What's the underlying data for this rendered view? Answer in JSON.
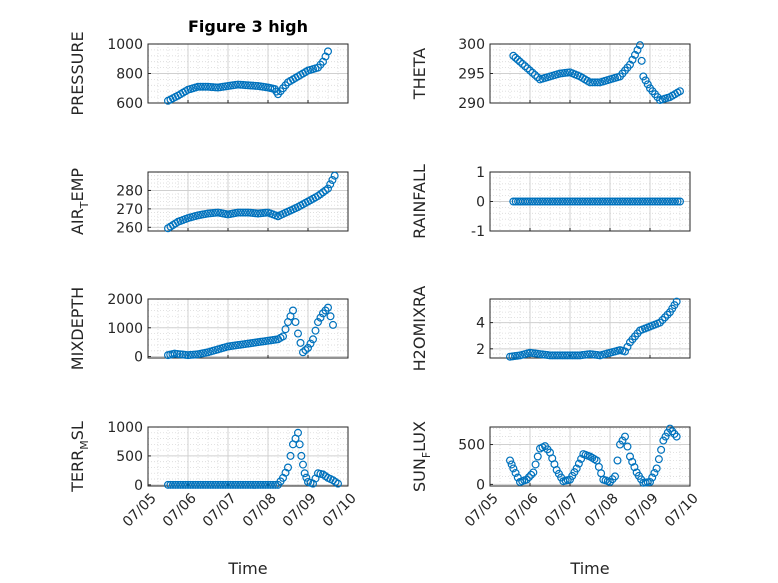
{
  "chart_data": [
    {
      "type": "scatter",
      "title": "Figure 3 high",
      "ylabel": "PRESSURE",
      "xlim": [
        "07/05",
        "07/10"
      ],
      "ylim": [
        600,
        1000
      ],
      "yticks": [
        "600",
        "800",
        "1000"
      ],
      "xticklabels": [],
      "xlabel": "",
      "series": [
        {
          "x": [
            "07/05 12:00",
            "07/05 18:00",
            "07/06 00:00",
            "07/06 06:00",
            "07/06 12:00",
            "07/06 18:00",
            "07/07 00:00",
            "07/07 06:00",
            "07/07 12:00",
            "07/07 18:00",
            "07/08 00:00",
            "07/08 04:00",
            "07/08 06:00",
            "07/08 12:00",
            "07/08 18:00",
            "07/09 00:00",
            "07/09 06:00",
            "07/09 09:00",
            "07/09 12:00"
          ],
          "y": [
            615,
            650,
            690,
            710,
            710,
            705,
            715,
            725,
            720,
            715,
            705,
            695,
            660,
            740,
            780,
            820,
            840,
            880,
            950
          ]
        }
      ]
    },
    {
      "type": "scatter",
      "title": "",
      "ylabel": "THETA",
      "xlim": [
        "07/05",
        "07/10"
      ],
      "ylim": [
        290,
        300
      ],
      "yticks": [
        "290",
        "295",
        "300"
      ],
      "xticklabels": [],
      "xlabel": "",
      "series": [
        {
          "x": [
            "07/05 14:00",
            "07/05 18:00",
            "07/06 00:00",
            "07/06 06:00",
            "07/06 12:00",
            "07/06 18:00",
            "07/07 00:00",
            "07/07 06:00",
            "07/07 12:00",
            "07/07 18:00",
            "07/08 00:00",
            "07/08 06:00",
            "07/08 12:00",
            "07/08 18:00",
            "07/08 20:00",
            "07/09 00:00",
            "07/09 06:00",
            "07/09 12:00",
            "07/09 18:00"
          ],
          "y": [
            298,
            297,
            295.5,
            294,
            294.5,
            295,
            295.2,
            294.5,
            293.5,
            293.5,
            294,
            294.5,
            296.5,
            299.8,
            294.5,
            292.5,
            290.5,
            291,
            292
          ]
        }
      ]
    },
    {
      "type": "scatter",
      "title": "",
      "ylabel": "AIR_TEMP",
      "xlim": [
        "07/05",
        "07/10"
      ],
      "ylim": [
        258,
        290
      ],
      "yticks": [
        "260",
        "270",
        "280"
      ],
      "xticklabels": [],
      "xlabel": "",
      "series": [
        {
          "x": [
            "07/05 12:00",
            "07/05 18:00",
            "07/06 00:00",
            "07/06 06:00",
            "07/06 12:00",
            "07/06 18:00",
            "07/07 00:00",
            "07/07 06:00",
            "07/07 12:00",
            "07/07 18:00",
            "07/08 00:00",
            "07/08 06:00",
            "07/08 12:00",
            "07/08 18:00",
            "07/09 00:00",
            "07/09 06:00",
            "07/09 12:00",
            "07/09 16:00"
          ],
          "y": [
            259.5,
            263,
            265,
            266.5,
            267.5,
            268,
            267,
            268,
            268,
            267.5,
            268,
            266,
            268.5,
            271,
            274,
            277,
            281,
            288
          ]
        }
      ]
    },
    {
      "type": "scatter",
      "title": "",
      "ylabel": "RAINFALL",
      "xlim": [
        "07/05",
        "07/10"
      ],
      "ylim": [
        -1,
        1
      ],
      "yticks": [
        "-1",
        "0",
        "1"
      ],
      "xticklabels": [],
      "xlabel": "",
      "series": [
        {
          "x": [
            "07/05 14:00",
            "07/06 00:00",
            "07/06 12:00",
            "07/07 00:00",
            "07/07 12:00",
            "07/08 00:00",
            "07/08 12:00",
            "07/09 00:00",
            "07/09 12:00",
            "07/09 18:00"
          ],
          "y": [
            0,
            0,
            0,
            0,
            0,
            0,
            0,
            0,
            0,
            0
          ]
        }
      ]
    },
    {
      "type": "scatter",
      "title": "",
      "ylabel": "MIXDEPTH",
      "xlim": [
        "07/05",
        "07/10"
      ],
      "ylim": [
        -50,
        2000
      ],
      "yticks": [
        "0",
        "1000",
        "2000"
      ],
      "xticklabels": [],
      "xlabel": "",
      "series": [
        {
          "x": [
            "07/05 12:00",
            "07/05 16:00",
            "07/06 00:00",
            "07/06 06:00",
            "07/06 12:00",
            "07/06 18:00",
            "07/07 00:00",
            "07/07 06:00",
            "07/07 12:00",
            "07/07 18:00",
            "07/08 00:00",
            "07/08 06:00",
            "07/08 09:00",
            "07/08 12:00",
            "07/08 15:00",
            "07/08 18:00",
            "07/08 21:00",
            "07/09 00:00",
            "07/09 03:00",
            "07/09 06:00",
            "07/09 09:00",
            "07/09 12:00",
            "07/09 15:00"
          ],
          "y": [
            50,
            100,
            50,
            80,
            150,
            250,
            350,
            400,
            450,
            500,
            550,
            600,
            700,
            1200,
            1600,
            800,
            150,
            300,
            600,
            1200,
            1500,
            1700,
            1100
          ]
        }
      ]
    },
    {
      "type": "scatter",
      "title": "",
      "ylabel": "H2OMIXRA",
      "xlim": [
        "07/05",
        "07/10"
      ],
      "ylim": [
        1.3,
        5.8
      ],
      "yticks": [
        "2",
        "4"
      ],
      "xticklabels": [],
      "xlabel": "",
      "series": [
        {
          "x": [
            "07/05 12:00",
            "07/05 18:00",
            "07/06 00:00",
            "07/06 06:00",
            "07/06 12:00",
            "07/06 18:00",
            "07/07 00:00",
            "07/07 06:00",
            "07/07 12:00",
            "07/07 18:00",
            "07/08 00:00",
            "07/08 06:00",
            "07/08 09:00",
            "07/08 12:00",
            "07/08 18:00",
            "07/09 00:00",
            "07/09 06:00",
            "07/09 12:00",
            "07/09 16:00"
          ],
          "y": [
            1.4,
            1.5,
            1.7,
            1.6,
            1.5,
            1.5,
            1.5,
            1.5,
            1.6,
            1.5,
            1.7,
            1.9,
            1.8,
            2.5,
            3.4,
            3.7,
            4.0,
            4.8,
            5.6
          ]
        }
      ]
    },
    {
      "type": "scatter",
      "title": "",
      "ylabel": "TERR_MSL",
      "xlim": [
        "07/05",
        "07/10"
      ],
      "ylim": [
        -20,
        1000
      ],
      "yticks": [
        "0",
        "500",
        "1000"
      ],
      "xticklabels": [
        "07/05",
        "07/06",
        "07/07",
        "07/08",
        "07/09",
        "07/10"
      ],
      "xlabel": "Time",
      "series": [
        {
          "x": [
            "07/05 12:00",
            "07/06 00:00",
            "07/06 12:00",
            "07/07 00:00",
            "07/07 12:00",
            "07/08 00:00",
            "07/08 06:00",
            "07/08 09:00",
            "07/08 12:00",
            "07/08 15:00",
            "07/08 18:00",
            "07/08 20:00",
            "07/08 22:00",
            "07/09 00:00",
            "07/09 03:00",
            "07/09 06:00",
            "07/09 09:00",
            "07/09 12:00",
            "07/09 15:00",
            "07/09 18:00"
          ],
          "y": [
            0,
            0,
            0,
            0,
            0,
            0,
            0,
            120,
            300,
            700,
            900,
            500,
            200,
            50,
            20,
            200,
            180,
            120,
            80,
            20
          ]
        }
      ]
    },
    {
      "type": "scatter",
      "title": "",
      "ylabel": "SUN_FLUX",
      "xlim": [
        "07/05",
        "07/10"
      ],
      "ylim": [
        -20,
        720
      ],
      "yticks": [
        "0",
        "500"
      ],
      "xticklabels": [
        "07/05",
        "07/06",
        "07/07",
        "07/08",
        "07/09",
        "07/10"
      ],
      "xlabel": "Time",
      "series": [
        {
          "x": [
            "07/05 12:00",
            "07/05 14:00",
            "07/05 18:00",
            "07/05 22:00",
            "07/06 02:00",
            "07/06 06:00",
            "07/06 09:00",
            "07/06 12:00",
            "07/06 16:00",
            "07/06 20:00",
            "07/07 00:00",
            "07/07 04:00",
            "07/07 08:00",
            "07/07 12:00",
            "07/07 16:00",
            "07/07 20:00",
            "07/08 00:00",
            "07/08 03:00",
            "07/08 06:00",
            "07/08 09:00",
            "07/08 12:00",
            "07/08 16:00",
            "07/08 20:00",
            "07/09 00:00",
            "07/09 04:00",
            "07/09 08:00",
            "07/09 12:00",
            "07/09 16:00"
          ],
          "y": [
            300,
            200,
            30,
            60,
            150,
            450,
            480,
            400,
            180,
            40,
            60,
            200,
            380,
            350,
            300,
            60,
            30,
            100,
            500,
            600,
            350,
            150,
            20,
            30,
            200,
            550,
            700,
            600
          ]
        }
      ]
    }
  ]
}
